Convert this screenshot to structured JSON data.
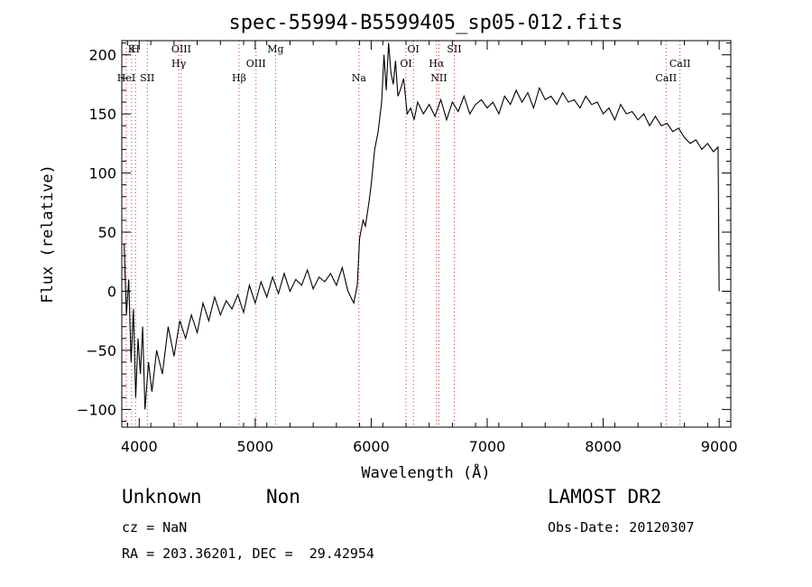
{
  "chart_data": {
    "type": "line",
    "title": "spec-55994-B5599405_sp05-012.fits",
    "xlabel": "Wavelength (Å)",
    "ylabel": "Flux (relative)",
    "xlim": [
      3850,
      9100
    ],
    "ylim": [
      -115,
      212
    ],
    "xticks": [
      4000,
      5000,
      6000,
      7000,
      8000,
      9000
    ],
    "yticks": [
      -100,
      -50,
      0,
      50,
      100,
      150,
      200
    ],
    "grid": false,
    "series": [
      {
        "x": [
          3870,
          3890,
          3910,
          3930,
          3950,
          3970,
          3990,
          4010,
          4030,
          4050,
          4080,
          4110,
          4150,
          4200,
          4250,
          4300,
          4350,
          4400,
          4450,
          4500,
          4550,
          4600,
          4650,
          4700,
          4750,
          4800,
          4850,
          4900,
          4950,
          5000,
          5050,
          5100,
          5150,
          5200,
          5250,
          5300,
          5350,
          5400,
          5450,
          5500,
          5550,
          5600,
          5650,
          5700,
          5750,
          5800,
          5850,
          5880,
          5900,
          5930,
          5950,
          5980,
          6000,
          6030,
          6060,
          6090,
          6110,
          6130,
          6150,
          6170,
          6190,
          6210,
          6230,
          6250,
          6280,
          6310,
          6340,
          6370,
          6400,
          6450,
          6500,
          6550,
          6600,
          6650,
          6700,
          6750,
          6800,
          6850,
          6900,
          6950,
          7000,
          7050,
          7100,
          7150,
          7200,
          7250,
          7300,
          7350,
          7400,
          7450,
          7500,
          7550,
          7600,
          7650,
          7700,
          7750,
          7800,
          7850,
          7900,
          7950,
          8000,
          8050,
          8100,
          8150,
          8200,
          8250,
          8300,
          8350,
          8400,
          8450,
          8500,
          8550,
          8600,
          8650,
          8700,
          8750,
          8800,
          8850,
          8900,
          8950,
          8990,
          9000
        ],
        "y": [
          40,
          -20,
          10,
          -60,
          -15,
          -90,
          -40,
          -70,
          -30,
          -100,
          -60,
          -85,
          -50,
          -70,
          -30,
          -55,
          -25,
          -40,
          -20,
          -35,
          -10,
          -25,
          -5,
          -20,
          -8,
          -15,
          -3,
          -18,
          5,
          -10,
          8,
          -5,
          12,
          -2,
          15,
          0,
          10,
          5,
          18,
          2,
          12,
          8,
          15,
          5,
          20,
          0,
          -10,
          5,
          45,
          60,
          55,
          75,
          90,
          120,
          135,
          160,
          200,
          170,
          210,
          185,
          175,
          195,
          165,
          170,
          180,
          150,
          155,
          145,
          160,
          150,
          158,
          148,
          162,
          145,
          160,
          152,
          165,
          150,
          158,
          162,
          155,
          160,
          150,
          165,
          158,
          170,
          160,
          168,
          155,
          172,
          162,
          165,
          158,
          168,
          160,
          162,
          155,
          165,
          158,
          160,
          150,
          155,
          145,
          158,
          150,
          152,
          145,
          150,
          140,
          148,
          140,
          142,
          135,
          138,
          130,
          125,
          128,
          120,
          125,
          118,
          122,
          0
        ]
      }
    ],
    "lines": [
      {
        "label": "H",
        "x": 3968
      },
      {
        "label": "K",
        "x": 3934
      },
      {
        "label": "HeI",
        "x": 3889
      },
      {
        "label": "SII",
        "x": 4070
      },
      {
        "label": "OIII",
        "x": 4363
      },
      {
        "label": "Hγ",
        "x": 4341
      },
      {
        "label": "Hβ",
        "x": 4861
      },
      {
        "label": "OIII",
        "x": 5007
      },
      {
        "label": "Mg",
        "x": 5175
      },
      {
        "label": "Na",
        "x": 5894
      },
      {
        "label": "OI",
        "x": 6364
      },
      {
        "label": "OI",
        "x": 6300
      },
      {
        "label": "Hα",
        "x": 6563
      },
      {
        "label": "NII",
        "x": 6583
      },
      {
        "label": "SII",
        "x": 6716
      },
      {
        "label": "CaII",
        "x": 8662
      },
      {
        "label": "CaII",
        "x": 8542
      }
    ]
  },
  "info": {
    "class": "Unknown",
    "subclass": "Non",
    "cz": "cz = NaN",
    "radec": "RA = 203.36201, DEC =  29.42954",
    "survey": "LAMOST DR2",
    "obsdate": "Obs-Date: 20120307"
  }
}
